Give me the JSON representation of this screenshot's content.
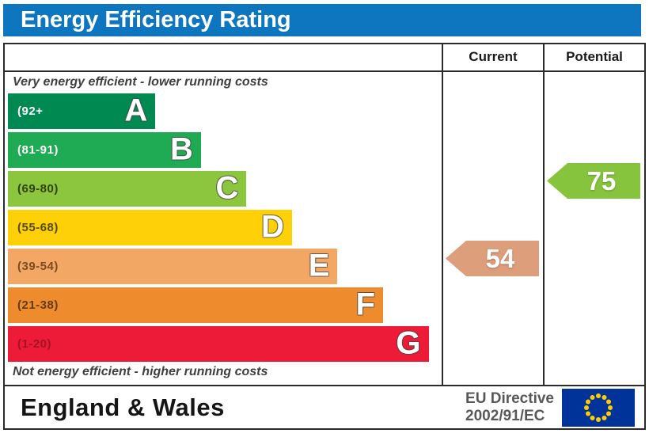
{
  "title": {
    "text": "Energy Efficiency Rating"
  },
  "columns": {
    "current": "Current",
    "potential": "Potential"
  },
  "captions": {
    "top": "Very energy efficient - lower running costs",
    "bottom": "Not energy efficient - higher running costs"
  },
  "chart_data": {
    "type": "bar",
    "title": "Energy Efficiency Rating",
    "categories": [
      "A",
      "B",
      "C",
      "D",
      "E",
      "F",
      "G"
    ],
    "bands": [
      {
        "letter": "A",
        "range": "(92+",
        "min": 92,
        "max": 100,
        "color": "#008a52",
        "range_color": "#ffffff",
        "width_pct": 34
      },
      {
        "letter": "B",
        "range": "(81-91)",
        "min": 81,
        "max": 91,
        "color": "#1fab53",
        "range_color": "#ffffff",
        "width_pct": 44.5
      },
      {
        "letter": "C",
        "range": "(69-80)",
        "min": 69,
        "max": 80,
        "color": "#8cc63f",
        "range_color": "#31420c",
        "width_pct": 55
      },
      {
        "letter": "D",
        "range": "(55-68)",
        "min": 55,
        "max": 68,
        "color": "#fdd008",
        "range_color": "#574a07",
        "width_pct": 65.5
      },
      {
        "letter": "E",
        "range": "(39-54)",
        "min": 39,
        "max": 54,
        "color": "#f3a765",
        "range_color": "#7c4b20",
        "width_pct": 76
      },
      {
        "letter": "F",
        "range": "(21-38)",
        "min": 21,
        "max": 38,
        "color": "#ee8b2c",
        "range_color": "#643c10",
        "width_pct": 86.5
      },
      {
        "letter": "G",
        "range": "(1-20)",
        "min": 1,
        "max": 20,
        "color": "#ed1b38",
        "range_color": "#a31325",
        "width_pct": 97
      }
    ],
    "current": {
      "value": "54",
      "band": "E",
      "color": "#dd9e7b"
    },
    "potential": {
      "value": "75",
      "band": "C",
      "color": "#86c43d"
    }
  },
  "footer": {
    "region": "England & Wales",
    "directive_line1": "EU Directive",
    "directive_line2": "2002/91/EC"
  },
  "colors": {
    "title_bar": "#0e76bf",
    "border": "#2b2b2b",
    "eu_flag_blue": "#003399",
    "eu_star_yellow": "#ffcc00"
  }
}
